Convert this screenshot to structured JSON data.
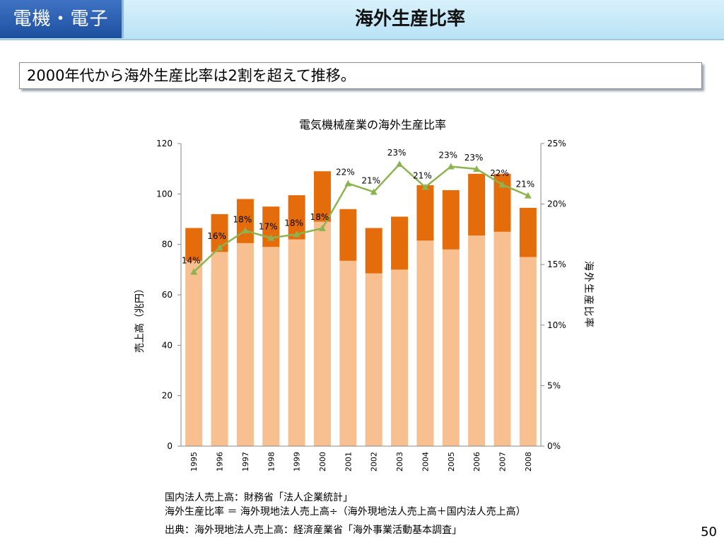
{
  "header": {
    "category": "電機・電子",
    "title": "海外生産比率"
  },
  "subtitle": "2000年代から海外生産比率は2割を超えて推移。",
  "notes": [
    "国内法人売上高：財務省「法人企業統計」",
    "海外生産比率 ＝ 海外現地法人売上高÷（海外現地法人売上高＋国内法人売上高）",
    "出典：海外現地法人売上高：経済産業省「海外事業活動基本調査」"
  ],
  "page_number": "50",
  "colors": {
    "domestic": "#f8c090",
    "overseas": "#e46c0a",
    "ratio_line": "#8db350"
  },
  "chart_data": {
    "type": "bar",
    "stacked": true,
    "title": "電気機械産業の海外生産比率",
    "ylabel": "売上高（兆円）",
    "y2label": "海外生産比率",
    "ylim": [
      0,
      120
    ],
    "y2lim": [
      0,
      25
    ],
    "yticks": [
      0,
      20,
      40,
      60,
      80,
      100,
      120
    ],
    "y2ticks": [
      "0%",
      "5%",
      "10%",
      "15%",
      "20%",
      "25%"
    ],
    "categories": [
      "1995",
      "1996",
      "1997",
      "1998",
      "1999",
      "2000",
      "2001",
      "2002",
      "2003",
      "2004",
      "2005",
      "2006",
      "2007",
      "2008"
    ],
    "series": [
      {
        "values": [
          73.5,
          77,
          80.5,
          79,
          82,
          89,
          73.5,
          68.5,
          70,
          81.5,
          78,
          83.5,
          85,
          75
        ]
      },
      {
        "values": [
          13,
          15,
          17.5,
          16,
          17.5,
          20,
          20.5,
          18,
          21,
          22,
          23.5,
          24.5,
          23,
          19.5
        ]
      },
      {
        "axis": "right",
        "values": [
          14.4,
          16.4,
          17.8,
          17.2,
          17.5,
          18.0,
          21.7,
          21.0,
          23.3,
          21.4,
          23.1,
          22.9,
          21.6,
          20.7
        ],
        "labels": [
          "14%",
          "16%",
          "18%",
          "17%",
          "18%",
          "18%",
          "22%",
          "21%",
          "23%",
          "21%",
          "23%",
          "23%",
          "22%",
          "21%"
        ]
      }
    ],
    "grid": false,
    "legend": "none"
  }
}
